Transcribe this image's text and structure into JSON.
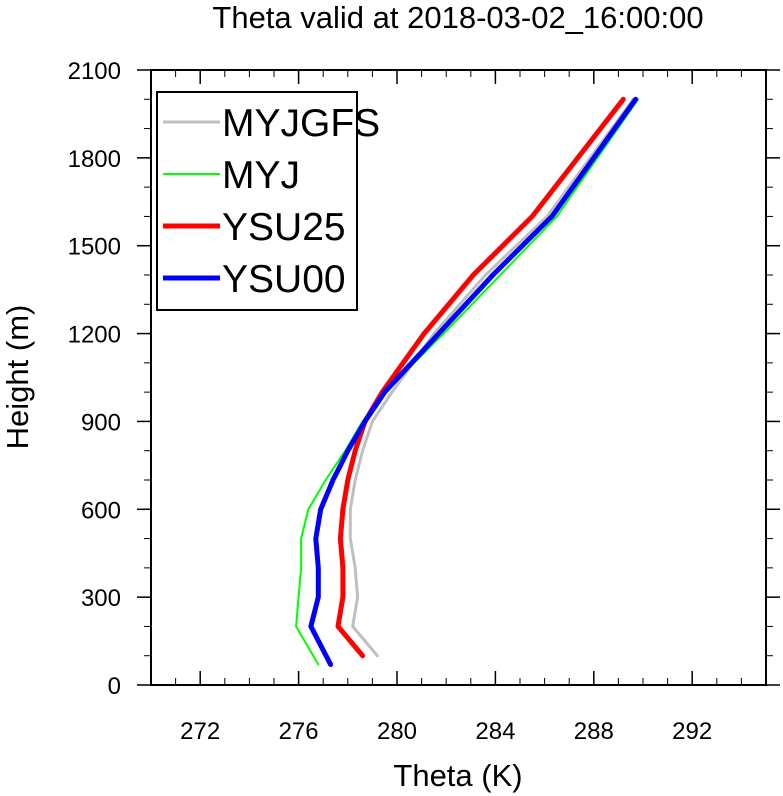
{
  "chart_data": {
    "type": "line",
    "title": "Theta valid at 2018-03-02_16:00:00",
    "xlabel": "Theta (K)",
    "ylabel": "Height (m)",
    "xlim": [
      270,
      295
    ],
    "ylim": [
      0,
      2100
    ],
    "xticks": [
      272,
      276,
      280,
      284,
      288,
      292
    ],
    "yticks": [
      0,
      300,
      600,
      900,
      1200,
      1500,
      1800,
      2100
    ],
    "legend_position": "top-left",
    "series": [
      {
        "name": "MYJGFS",
        "color": "#bfbfbf",
        "width": 3,
        "x": [
          279.2,
          278.2,
          278.4,
          278.3,
          278.1,
          278.1,
          278.3,
          278.6,
          279.0,
          279.8,
          281.5,
          283.6,
          286.1,
          289.6
        ],
        "y": [
          100,
          200,
          300,
          400,
          500,
          600,
          700,
          800,
          900,
          1000,
          1200,
          1400,
          1600,
          2000
        ]
      },
      {
        "name": "MYJ",
        "color": "#00ff00",
        "width": 2,
        "x": [
          276.8,
          275.9,
          276.0,
          276.1,
          276.1,
          276.4,
          277.1,
          277.9,
          278.6,
          279.5,
          281.9,
          284.2,
          286.5,
          289.8
        ],
        "y": [
          70,
          200,
          300,
          400,
          500,
          600,
          700,
          800,
          900,
          1000,
          1200,
          1400,
          1600,
          2000
        ]
      },
      {
        "name": "YSU25",
        "color": "#ff0000",
        "width": 5,
        "x": [
          278.6,
          277.6,
          277.8,
          277.8,
          277.7,
          277.8,
          278.0,
          278.3,
          278.7,
          279.4,
          281.1,
          283.1,
          285.5,
          289.2
        ],
        "y": [
          100,
          200,
          300,
          400,
          500,
          600,
          700,
          800,
          900,
          1000,
          1200,
          1400,
          1600,
          2000
        ]
      },
      {
        "name": "YSU00",
        "color": "#0000ff",
        "width": 5,
        "x": [
          277.3,
          276.5,
          276.8,
          276.8,
          276.7,
          276.9,
          277.4,
          278.0,
          278.7,
          279.5,
          281.7,
          283.9,
          286.3,
          289.7
        ],
        "y": [
          70,
          200,
          300,
          400,
          500,
          600,
          700,
          800,
          900,
          1000,
          1200,
          1400,
          1600,
          2000
        ]
      }
    ]
  }
}
